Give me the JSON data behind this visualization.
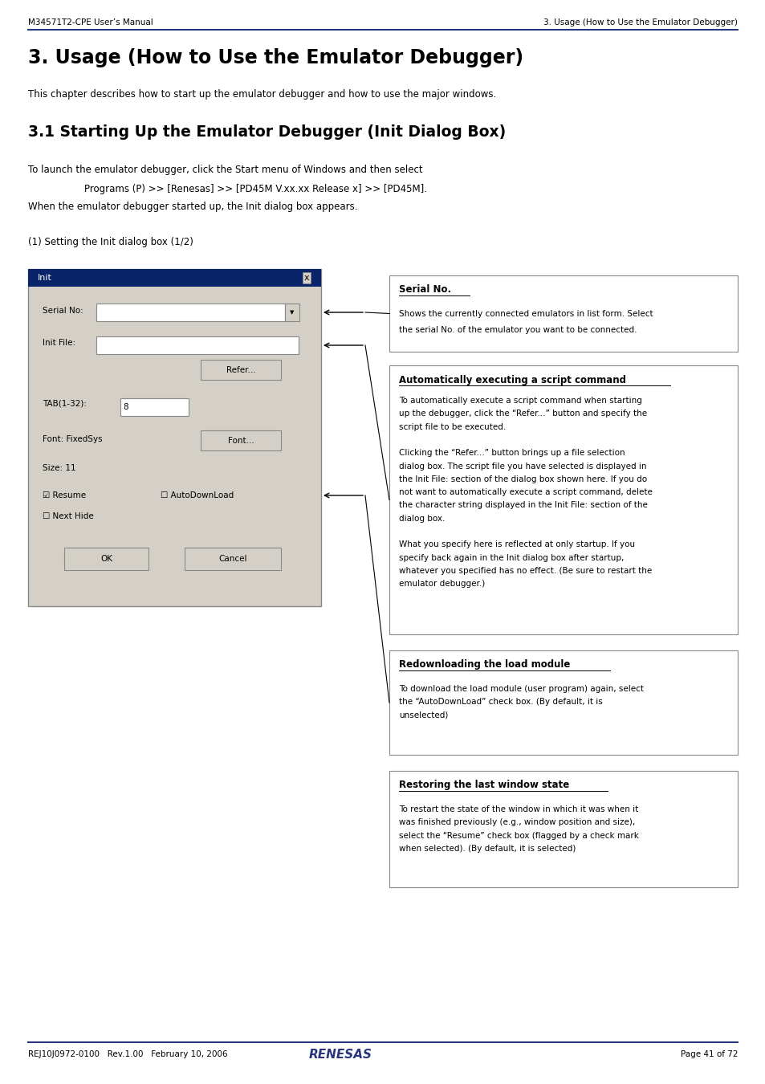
{
  "page_width": 9.54,
  "page_height": 13.5,
  "bg_color": "#ffffff",
  "header_left": "M34571T2-CPE User’s Manual",
  "header_right": "3. Usage (How to Use the Emulator Debugger)",
  "header_line_color": "#2a3580",
  "footer_left": "REJ10J0972-0100   Rev.1.00   February 10, 2006",
  "footer_right": "Page 41 of 72",
  "footer_line_color": "#2a3580",
  "title": "3. Usage (How to Use the Emulator Debugger)",
  "section_title": "3.1 Starting Up the Emulator Debugger (Init Dialog Box)",
  "intro_text": "This chapter describes how to start up the emulator debugger and how to use the major windows.",
  "launch_text1": "To launch the emulator debugger, click the Start menu of Windows and then select",
  "launch_text2": "Programs (P) >> [Renesas] >> [PD45M V.xx.xx Release x] >> [PD45M].",
  "launch_text3": "When the emulator debugger started up, the Init dialog box appears.",
  "setting_label": "(1) Setting the Init dialog box (1/2)",
  "box1_title": "Serial No.",
  "box1_text1": "Shows the currently connected emulators in list form. Select",
  "box1_text2": "the serial No. of the emulator you want to be connected.",
  "box2_title": "Automatically executing a script command",
  "box2_lines": [
    "To automatically execute a script command when starting",
    "up the debugger, click the “Refer...” button and specify the",
    "script file to be executed.",
    "",
    "Clicking the “Refer...” button brings up a file selection",
    "dialog box. The script file you have selected is displayed in",
    "the Init File: section of the dialog box shown here. If you do",
    "not want to automatically execute a script command, delete",
    "the character string displayed in the Init File: section of the",
    "dialog box.",
    "",
    "What you specify here is reflected at only startup. If you",
    "specify back again in the Init dialog box after startup,",
    "whatever you specified has no effect. (Be sure to restart the",
    "emulator debugger.)"
  ],
  "box3_title": "Redownloading the load module",
  "box3_lines": [
    "To download the load module (user program) again, select",
    "the “AutoDownLoad” check box. (By default, it is",
    "unselected)"
  ],
  "box4_title": "Restoring the last window state",
  "box4_lines": [
    "To restart the state of the window in which it was when it",
    "was finished previously (e.g., window position and size),",
    "select the “Resume” check box (flagged by a check mark",
    "when selected). (By default, it is selected)"
  ]
}
